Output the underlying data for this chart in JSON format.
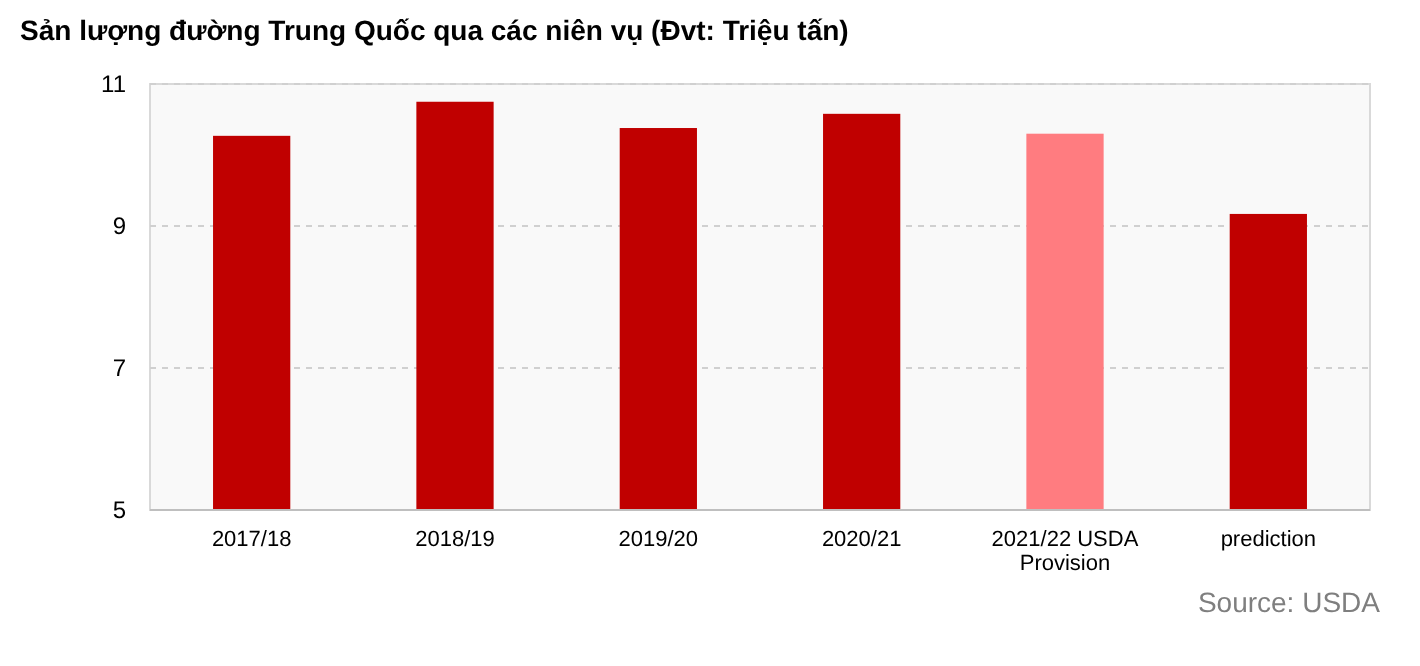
{
  "chart_data": {
    "type": "bar",
    "title": "Sản lượng đường Trung Quốc qua các niên vụ (Đvt: Triệu tấn)",
    "categories": [
      "2017/18",
      "2018/19",
      "2019/20",
      "2020/21",
      "2021/22 USDA Provision",
      "prediction"
    ],
    "values": [
      10.27,
      10.75,
      10.38,
      10.58,
      10.3,
      9.17
    ],
    "colors": [
      "#c00000",
      "#c00000",
      "#c00000",
      "#c00000",
      "#ff7c80",
      "#c00000"
    ],
    "ylim": [
      5,
      11
    ],
    "yticks": [
      5,
      7,
      9,
      11
    ],
    "grid": "y",
    "annotations": [
      "Source: USDA"
    ]
  }
}
